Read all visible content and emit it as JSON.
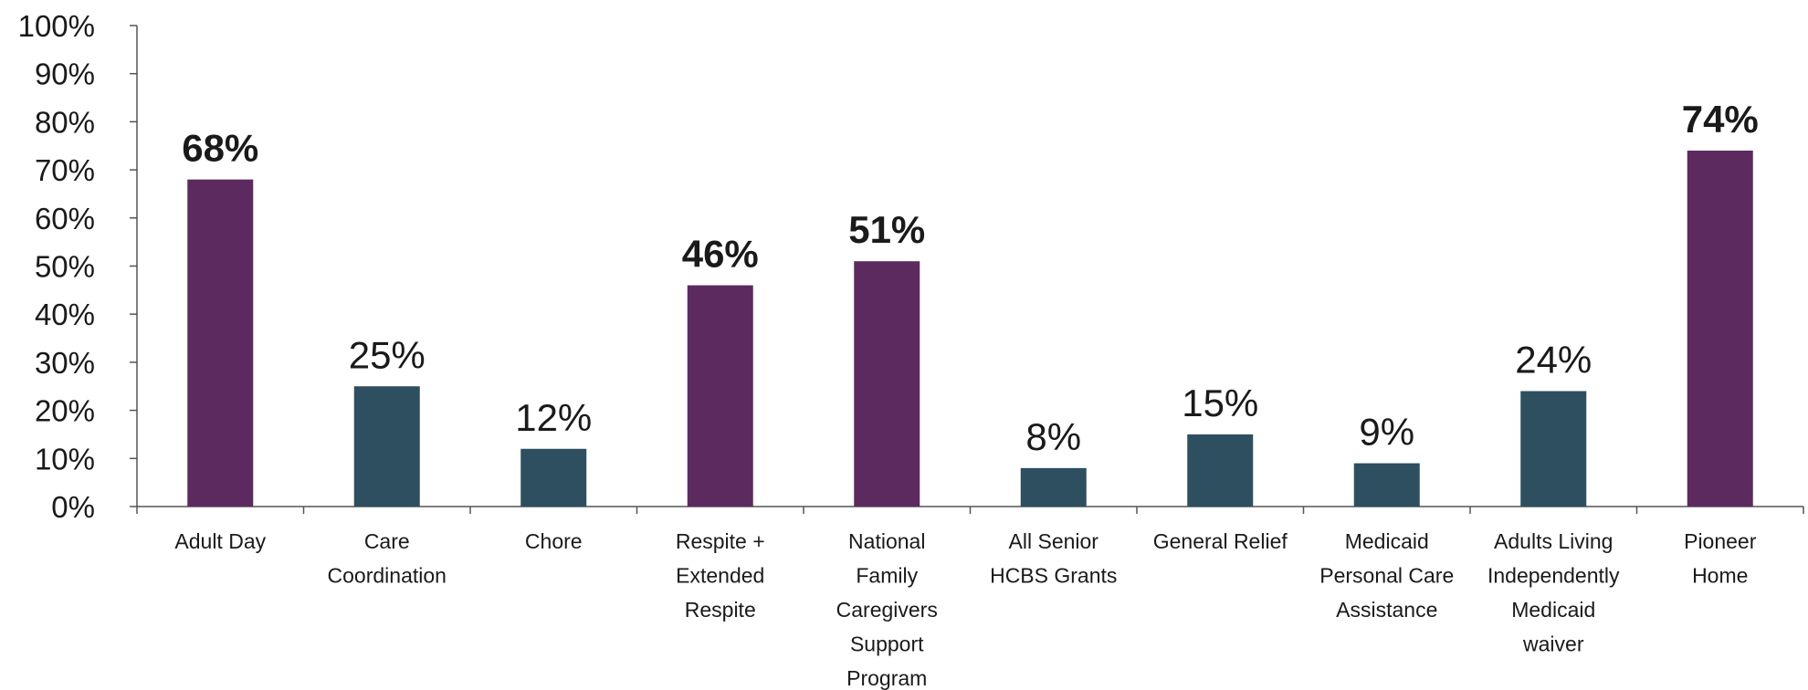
{
  "chart_data": {
    "type": "bar",
    "title": "",
    "xlabel": "",
    "ylabel": "",
    "ylim": [
      0,
      100
    ],
    "yticks": [
      "0%",
      "10%",
      "20%",
      "30%",
      "40%",
      "50%",
      "60%",
      "70%",
      "80%",
      "90%",
      "100%"
    ],
    "grid": false,
    "legend": "none",
    "categories": [
      [
        "Adult Day"
      ],
      [
        "Care",
        "Coordination"
      ],
      [
        "Chore"
      ],
      [
        "Respite +",
        "Extended",
        "Respite"
      ],
      [
        "National",
        "Family",
        "Caregivers",
        "Support",
        "Program"
      ],
      [
        "All Senior",
        "HCBS Grants"
      ],
      [
        "General Relief"
      ],
      [
        "Medicaid",
        "Personal Care",
        "Assistance"
      ],
      [
        "Adults Living",
        "Independently",
        "Medicaid",
        "waiver"
      ],
      [
        "Pioneer",
        "Home"
      ]
    ],
    "values": [
      68,
      25,
      12,
      46,
      51,
      8,
      15,
      9,
      24,
      74
    ],
    "value_labels": [
      "68%",
      "25%",
      "12%",
      "46%",
      "51%",
      "8%",
      "15%",
      "9%",
      "24%",
      "74%"
    ],
    "highlighted": [
      true,
      false,
      false,
      true,
      true,
      false,
      false,
      false,
      false,
      true
    ],
    "colors": {
      "highlight_bar": "#5c2a5f",
      "normal_bar": "#2e4f5f",
      "highlight_label": "#8b1e22",
      "normal_label": "#1a1a1a",
      "axis": "#555555"
    }
  }
}
